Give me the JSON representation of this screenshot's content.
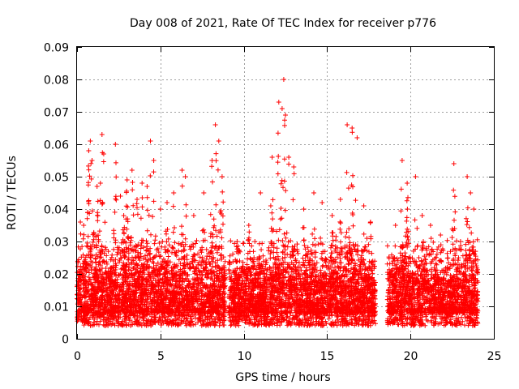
{
  "chart_data": {
    "type": "scatter",
    "title": "Day 008 of 2021, Rate Of TEC Index for receiver p776",
    "xlabel": "GPS time / hours",
    "ylabel": "ROTI / TECUs",
    "xlim": [
      0,
      25
    ],
    "ylim": [
      0,
      0.09
    ],
    "x_ticks": [
      "0",
      "5",
      "10",
      "15",
      "20",
      "25"
    ],
    "y_ticks": [
      "0",
      "0.01",
      "0.02",
      "0.03",
      "0.04",
      "0.05",
      "0.06",
      "0.07",
      "0.08",
      "0.09"
    ],
    "grid": true,
    "marker": "+",
    "marker_color": "#ff0000",
    "series": [
      {
        "name": "ROTI",
        "note": "dense cloud of ~8000 samples 0–24 h, median ~0.012, excursions listed as peaks",
        "gaps": [
          [
            8.9,
            9.1
          ],
          [
            17.9,
            18.6
          ]
        ],
        "peaks": [
          [
            0.2,
            0.036
          ],
          [
            0.4,
            0.035
          ],
          [
            0.7,
            0.058
          ],
          [
            0.8,
            0.061
          ],
          [
            0.9,
            0.055
          ],
          [
            1.2,
            0.047
          ],
          [
            1.4,
            0.048
          ],
          [
            1.5,
            0.063
          ],
          [
            1.6,
            0.057
          ],
          [
            2.3,
            0.06
          ],
          [
            2.6,
            0.044
          ],
          [
            2.8,
            0.038
          ],
          [
            3.0,
            0.049
          ],
          [
            3.3,
            0.052
          ],
          [
            3.6,
            0.043
          ],
          [
            3.9,
            0.048
          ],
          [
            4.2,
            0.047
          ],
          [
            4.4,
            0.061
          ],
          [
            4.6,
            0.055
          ],
          [
            5.0,
            0.04
          ],
          [
            5.4,
            0.042
          ],
          [
            5.8,
            0.045
          ],
          [
            6.3,
            0.052
          ],
          [
            6.5,
            0.05
          ],
          [
            7.0,
            0.038
          ],
          [
            7.6,
            0.045
          ],
          [
            8.1,
            0.055
          ],
          [
            8.3,
            0.066
          ],
          [
            8.5,
            0.061
          ],
          [
            8.7,
            0.05
          ],
          [
            9.6,
            0.03
          ],
          [
            10.3,
            0.035
          ],
          [
            11.0,
            0.045
          ],
          [
            11.7,
            0.056
          ],
          [
            12.1,
            0.073
          ],
          [
            12.3,
            0.071
          ],
          [
            12.4,
            0.08
          ],
          [
            12.5,
            0.069
          ],
          [
            12.7,
            0.056
          ],
          [
            13.0,
            0.053
          ],
          [
            13.6,
            0.04
          ],
          [
            14.2,
            0.045
          ],
          [
            14.7,
            0.042
          ],
          [
            15.3,
            0.038
          ],
          [
            15.8,
            0.043
          ],
          [
            16.2,
            0.066
          ],
          [
            16.5,
            0.065
          ],
          [
            16.8,
            0.062
          ],
          [
            17.2,
            0.041
          ],
          [
            17.6,
            0.036
          ],
          [
            19.1,
            0.035
          ],
          [
            19.5,
            0.055
          ],
          [
            19.8,
            0.048
          ],
          [
            20.3,
            0.05
          ],
          [
            20.7,
            0.038
          ],
          [
            21.2,
            0.035
          ],
          [
            21.8,
            0.032
          ],
          [
            22.6,
            0.054
          ],
          [
            23.0,
            0.03
          ],
          [
            23.4,
            0.05
          ],
          [
            23.6,
            0.045
          ],
          [
            23.8,
            0.04
          ]
        ]
      }
    ]
  }
}
